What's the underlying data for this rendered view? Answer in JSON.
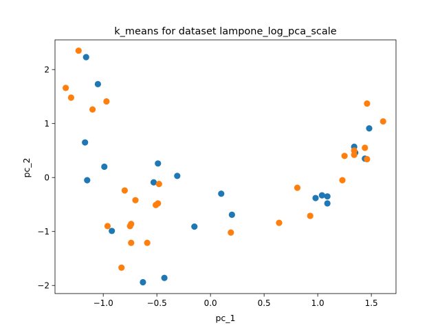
{
  "chart_data": {
    "type": "scatter",
    "title": "k_means for dataset lampone_log_pca_scale",
    "xlabel": "pc_1",
    "ylabel": "pc_2",
    "xlim": [
      -1.45,
      1.73
    ],
    "ylim": [
      -2.15,
      2.55
    ],
    "x_ticks": [
      -1.0,
      -0.5,
      0.0,
      0.5,
      1.0,
      1.5
    ],
    "x_tick_labels": [
      "−1.0",
      "−0.5",
      "0.0",
      "0.5",
      "1.0",
      "1.5"
    ],
    "y_ticks": [
      -2,
      -1,
      0,
      1,
      2
    ],
    "y_tick_labels": [
      "−2",
      "−1",
      "0",
      "1",
      "2"
    ],
    "grid": false,
    "series": [
      {
        "color": "#1f77b4",
        "points": [
          [
            -1.16,
            2.23
          ],
          [
            -1.05,
            1.73
          ],
          [
            -1.17,
            0.65
          ],
          [
            -0.99,
            0.2
          ],
          [
            -1.15,
            -0.05
          ],
          [
            -0.92,
            -0.99
          ],
          [
            -0.49,
            0.26
          ],
          [
            -0.53,
            -0.09
          ],
          [
            -0.31,
            0.03
          ],
          [
            -0.63,
            -1.94
          ],
          [
            -0.43,
            -1.86
          ],
          [
            -0.15,
            -0.91
          ],
          [
            0.1,
            -0.3
          ],
          [
            0.2,
            -0.69
          ],
          [
            0.98,
            -0.38
          ],
          [
            1.04,
            -0.33
          ],
          [
            1.09,
            -0.35
          ],
          [
            1.09,
            -0.48
          ],
          [
            1.34,
            0.57
          ],
          [
            1.44,
            0.35
          ],
          [
            1.48,
            0.91
          ],
          [
            1.35,
            0.46
          ]
        ]
      },
      {
        "color": "#ff7f0e",
        "points": [
          [
            -1.23,
            2.35
          ],
          [
            -1.35,
            1.66
          ],
          [
            -1.3,
            1.48
          ],
          [
            -1.1,
            1.26
          ],
          [
            -0.97,
            1.41
          ],
          [
            -0.96,
            -0.9
          ],
          [
            -0.8,
            -0.24
          ],
          [
            -0.7,
            -0.42
          ],
          [
            -0.74,
            -0.86
          ],
          [
            -0.75,
            -0.9
          ],
          [
            -0.74,
            -1.21
          ],
          [
            -0.59,
            -1.21
          ],
          [
            -0.83,
            -1.67
          ],
          [
            -0.48,
            -0.12
          ],
          [
            -0.49,
            -0.48
          ],
          [
            -0.51,
            -0.51
          ],
          [
            0.19,
            -1.02
          ],
          [
            0.64,
            -0.84
          ],
          [
            0.81,
            -0.19
          ],
          [
            0.93,
            -0.71
          ],
          [
            1.23,
            -0.05
          ],
          [
            1.25,
            0.4
          ],
          [
            1.34,
            0.42
          ],
          [
            1.34,
            0.5
          ],
          [
            1.44,
            0.55
          ],
          [
            1.46,
            0.34
          ],
          [
            1.46,
            1.37
          ],
          [
            1.61,
            1.04
          ]
        ]
      }
    ]
  }
}
